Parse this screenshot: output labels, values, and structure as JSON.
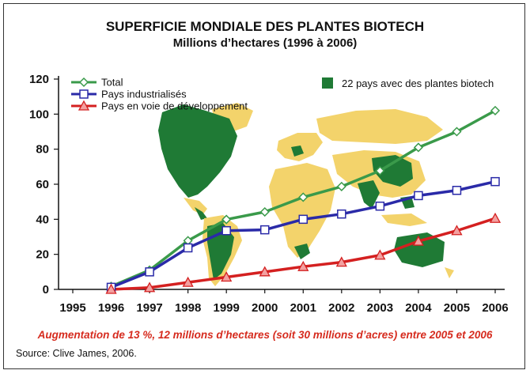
{
  "chart_data": {
    "type": "line",
    "title": "SUPERFICIE MONDIALE DES PLANTES BIOTECH",
    "subtitle": "Millions d’hectares (1996 à 2006)",
    "x": [
      1996,
      1997,
      1998,
      1999,
      2000,
      2001,
      2002,
      2003,
      2004,
      2005,
      2006
    ],
    "x_tick_labels": [
      "1995",
      "1996",
      "1997",
      "1998",
      "1999",
      "2000",
      "2001",
      "2002",
      "2003",
      "2004",
      "2005",
      "2006"
    ],
    "xlim": [
      1995,
      2006
    ],
    "ylim": [
      0,
      120
    ],
    "y_ticks": [
      0,
      20,
      40,
      60,
      80,
      100,
      120
    ],
    "grid": false,
    "legend_position": "top-left",
    "series": [
      {
        "name": "Total",
        "color": "#3a9a4a",
        "marker": "diamond",
        "values": [
          1.7,
          11,
          27.8,
          39.9,
          44.2,
          52.6,
          58.7,
          67.7,
          81,
          90,
          102
        ]
      },
      {
        "name": "Pays industrialisés",
        "color": "#2a2aa8",
        "marker": "square",
        "values": [
          1.2,
          10,
          23.7,
          33.5,
          34,
          40,
          43,
          47.5,
          53.5,
          56.5,
          61.5
        ]
      },
      {
        "name": "Pays en voie de développement",
        "color": "#d42020",
        "marker": "triangle",
        "values": [
          0,
          1,
          4,
          7,
          10,
          13,
          15.5,
          19.5,
          27.5,
          33.5,
          40.5
        ]
      }
    ],
    "annotation": "22 pays avec des plantes biotech",
    "annotation_color": "#1f7a35",
    "map_colors": {
      "biotech": "#1f7a35",
      "other": "#f3d36b"
    },
    "footer_note": "Augmentation de 13 %, 12 millions d’hectares (soit 30 millions d’acres) entre 2005 et 2006",
    "source": "Source: Clive James, 2006."
  }
}
